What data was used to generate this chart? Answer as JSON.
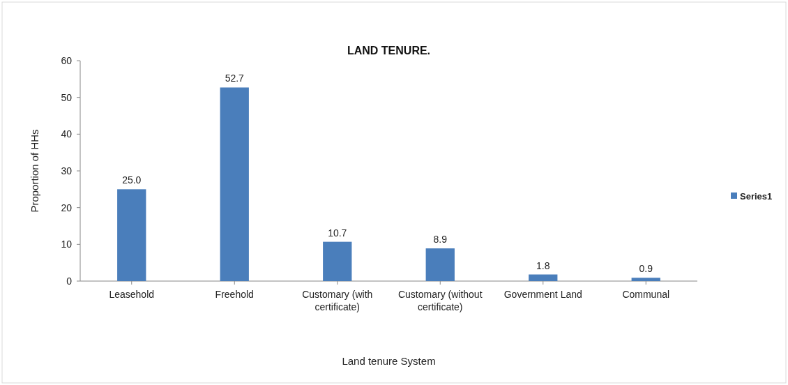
{
  "chart_data": {
    "type": "bar",
    "title": "LAND TENURE.",
    "xlabel": "Land tenure System",
    "ylabel": "Proportion of HHs",
    "categories": [
      "Leasehold",
      "Freehold",
      "Customary (with certificate)",
      "Customary (without certificate)",
      "Government Land",
      "Communal"
    ],
    "series": [
      {
        "name": "Series1",
        "color": "#4a7ebb",
        "values": [
          25.0,
          52.7,
          10.7,
          8.9,
          1.8,
          0.9
        ],
        "value_labels": [
          "25.0",
          "52.7",
          "10.7",
          "8.9",
          "1.8",
          "0.9"
        ]
      }
    ],
    "ylim": [
      0,
      60
    ],
    "yticks": [
      0,
      10,
      20,
      30,
      40,
      50,
      60
    ],
    "grid": false,
    "legend": "right"
  }
}
